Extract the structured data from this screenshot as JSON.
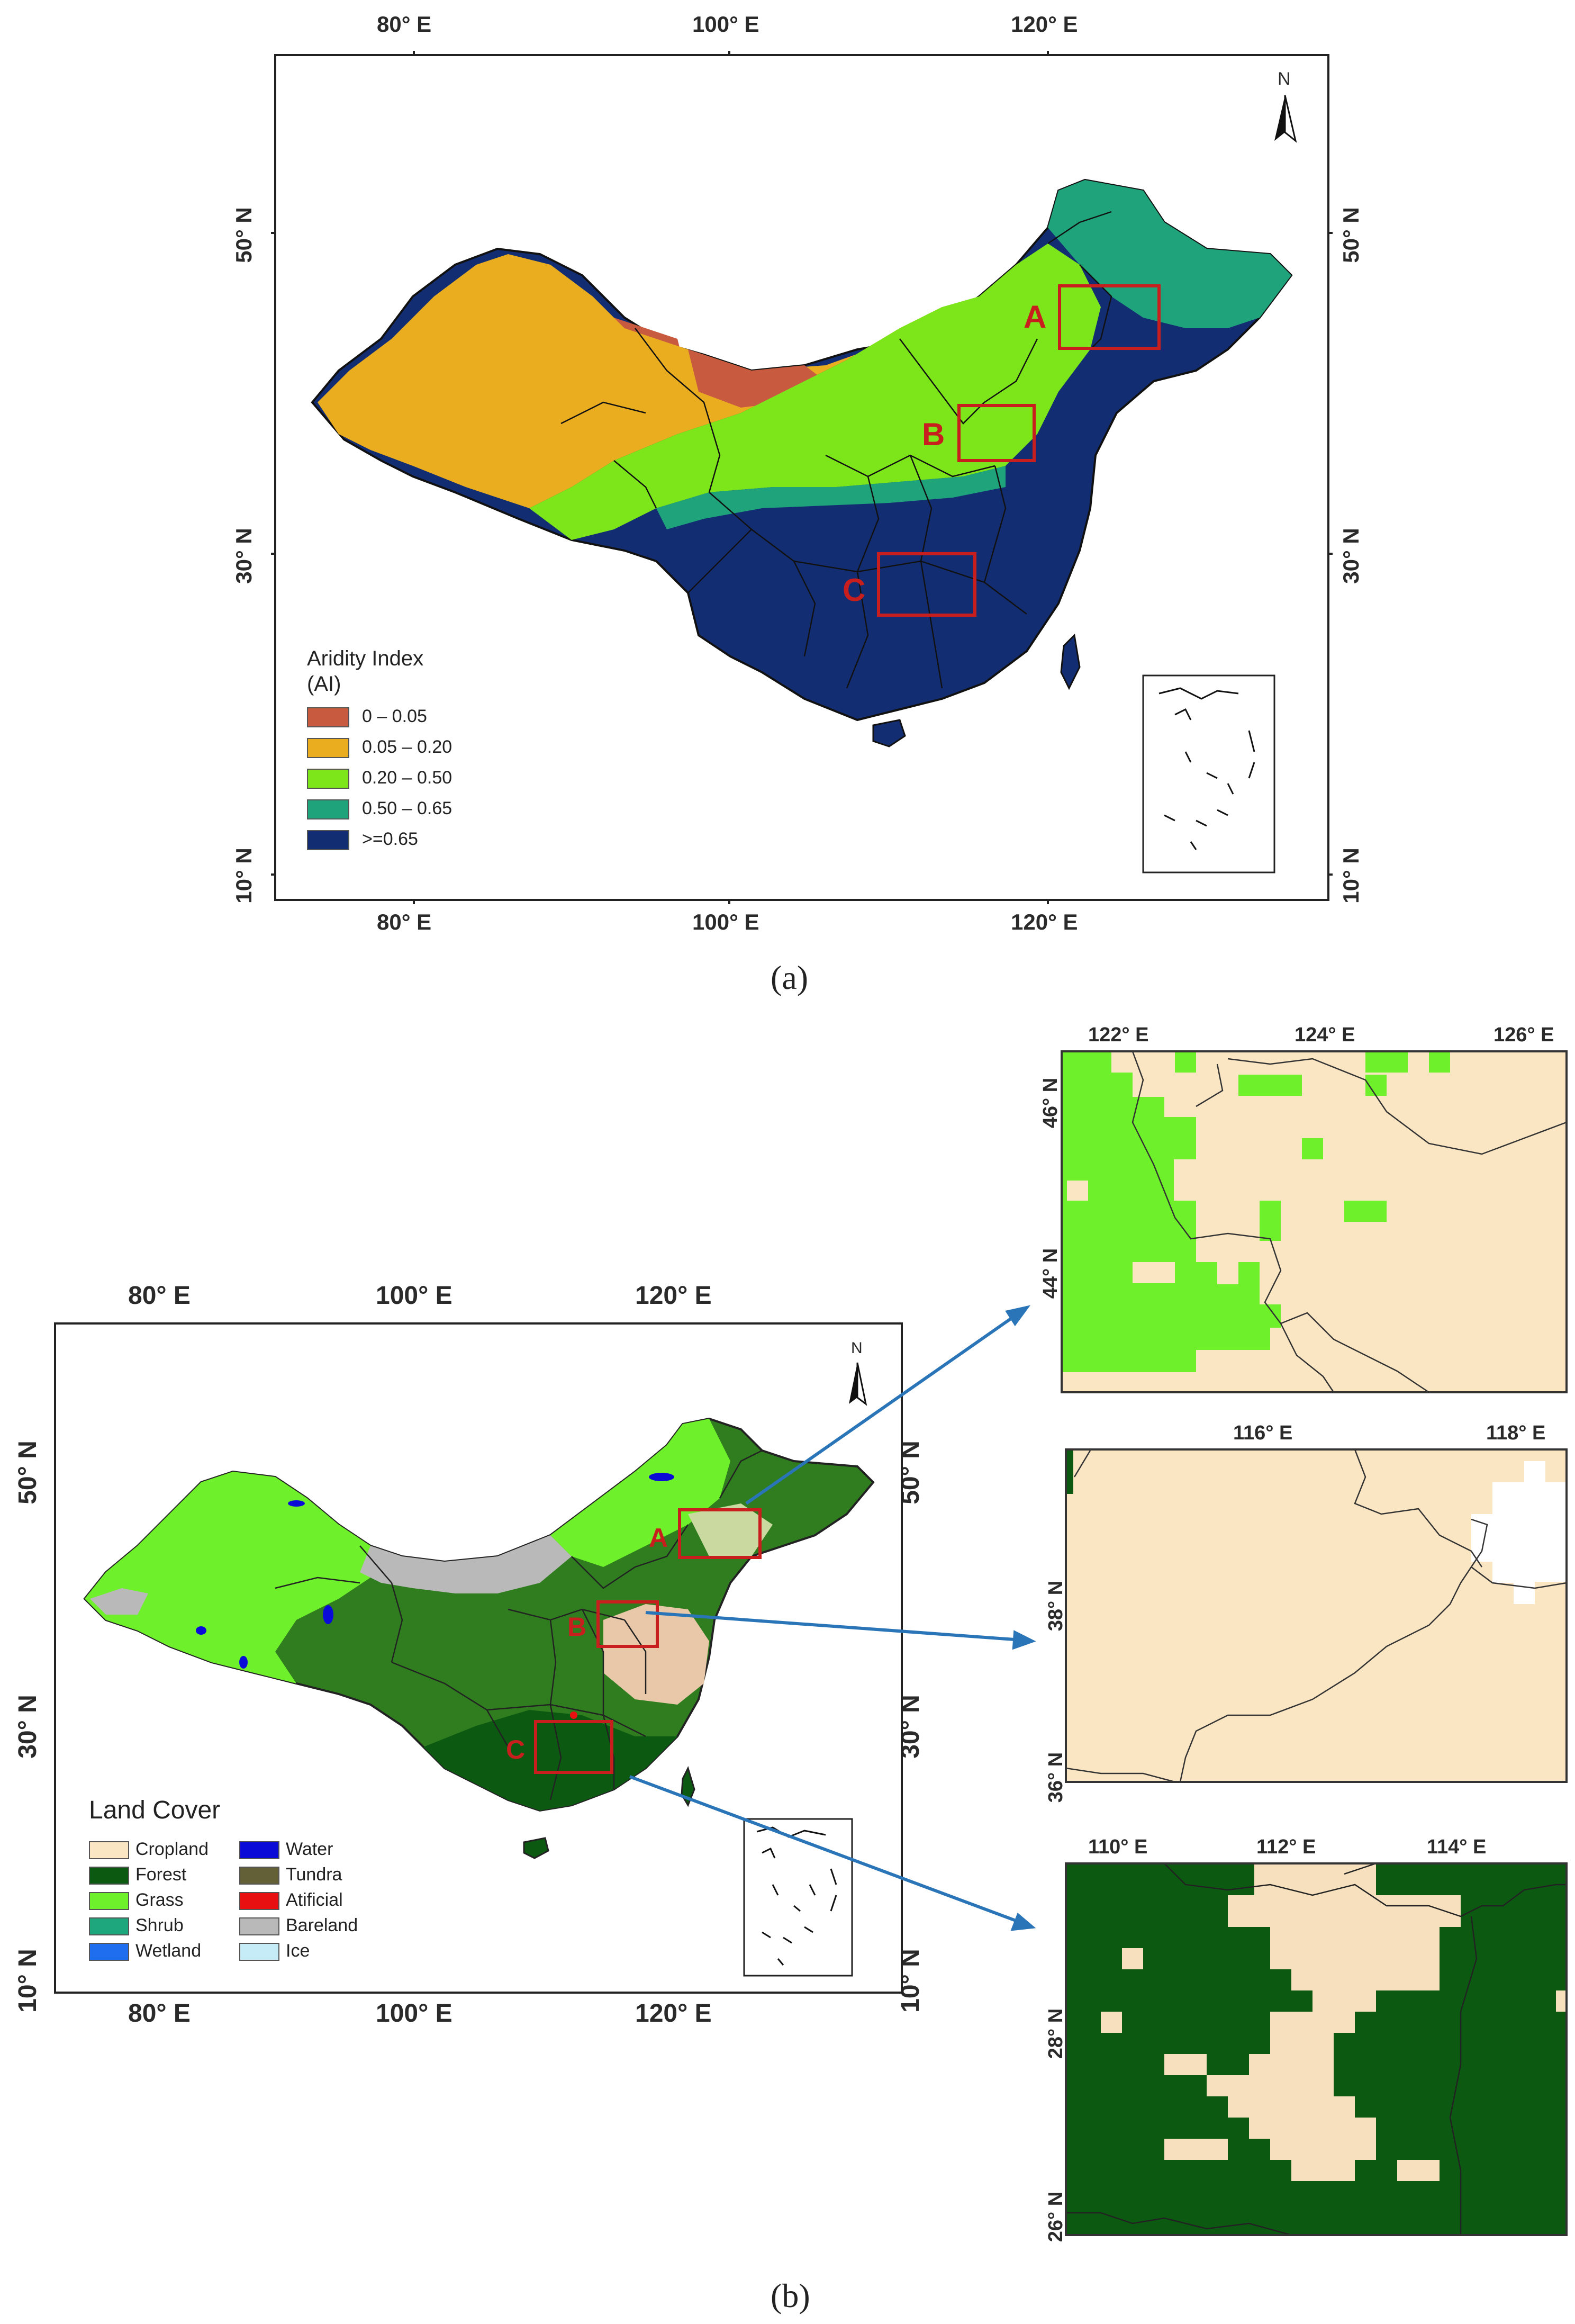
{
  "panel_a": {
    "label": "(a)",
    "top_ticks": [
      "80° E",
      "100° E",
      "120° E"
    ],
    "bottom_ticks": [
      "80° E",
      "100° E",
      "120° E"
    ],
    "left_ticks": [
      "50° N",
      "30° N",
      "10° N"
    ],
    "right_ticks": [
      "50° N",
      "30° N",
      "10° N"
    ],
    "north": "N",
    "legend": {
      "title_line1": "Aridity Index",
      "title_line2": "(AI)",
      "items": [
        {
          "label": "0 – 0.05",
          "color": "#c75a3f"
        },
        {
          "label": "0.05 – 0.20",
          "color": "#e9ad1f"
        },
        {
          "label": "0.20 – 0.50",
          "color": "#7de61a"
        },
        {
          "label": "0.50 – 0.65",
          "color": "#1fa37a"
        },
        {
          "label": ">=0.65",
          "color": "#132d73"
        }
      ]
    },
    "regions": [
      "A",
      "B",
      "C"
    ]
  },
  "panel_b": {
    "label": "(b)",
    "top_ticks": [
      "80° E",
      "100° E",
      "120° E"
    ],
    "bottom_ticks": [
      "80° E",
      "100° E",
      "120° E"
    ],
    "left_ticks": [
      "50° N",
      "30° N",
      "10° N"
    ],
    "right_ticks": [
      "50° N",
      "30° N",
      "10° N"
    ],
    "north": "N",
    "legend": {
      "title": "Land Cover",
      "col1": [
        {
          "label": "Cropland",
          "color": "#fbe6c4"
        },
        {
          "label": "Forest",
          "color": "#0c5a12"
        },
        {
          "label": "Grass",
          "color": "#6ef02a"
        },
        {
          "label": "Shrub",
          "color": "#1ea67c"
        },
        {
          "label": "Wetland",
          "color": "#1f6ef0"
        }
      ],
      "col2": [
        {
          "label": "Water",
          "color": "#0b0bd8"
        },
        {
          "label": "Tundra",
          "color": "#636037"
        },
        {
          "label": "Atificial",
          "color": "#e81010"
        },
        {
          "label": "Bareland",
          "color": "#b9b9b9"
        },
        {
          "label": "Ice",
          "color": "#c6ecf7"
        }
      ]
    },
    "regions": [
      "A",
      "B",
      "C"
    ],
    "zoom_a": {
      "top_ticks": [
        "122° E",
        "124° E",
        "126° E"
      ],
      "left_ticks": [
        "46° N",
        "44° N"
      ]
    },
    "zoom_b": {
      "top_ticks": [
        "116° E",
        "118° E"
      ],
      "left_ticks": [
        "38° N",
        "36° N"
      ]
    },
    "zoom_c": {
      "top_ticks": [
        "110° E",
        "112° E",
        "114° E"
      ],
      "left_ticks": [
        "28° N",
        "26° N"
      ]
    }
  },
  "colors": {
    "region_box": "#c81e1e",
    "arrow": "#2a74b8"
  }
}
